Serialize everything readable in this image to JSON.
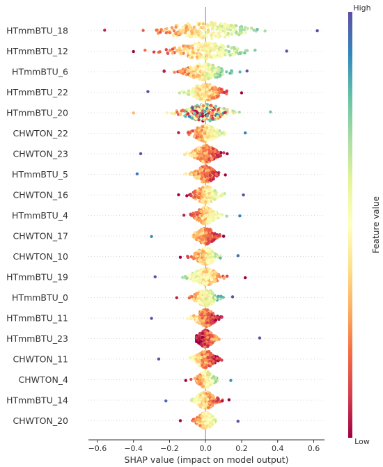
{
  "chart_data": {
    "type": "scatter",
    "subtype": "shap-beeswarm",
    "xlabel": "SHAP value (impact on model output)",
    "xlim": [
      -0.65,
      0.66
    ],
    "xticks": [
      -0.6,
      -0.4,
      -0.2,
      0.0,
      0.2,
      0.4,
      0.6
    ],
    "xtick_labels": [
      "−0.6",
      "−0.4",
      "−0.2",
      "0.0",
      "0.2",
      "0.4",
      "0.6"
    ],
    "zero_line": true,
    "colorbar": {
      "title": "Feature value",
      "high_label": "High",
      "low_label": "Low",
      "colormap": "Spectral",
      "position": "right"
    },
    "features": [
      {
        "name": "HTmmBTU_18",
        "min": -0.56,
        "max": 0.62,
        "low_side": "negative",
        "spread": 0.24
      },
      {
        "name": "HTmmBTU_12",
        "min": -0.4,
        "max": 0.45,
        "low_side": "negative",
        "spread": 0.18
      },
      {
        "name": "HTmmBTU_6",
        "min": -0.23,
        "max": 0.23,
        "low_side": "negative",
        "spread": 0.11
      },
      {
        "name": "HTmmBTU_22",
        "min": -0.32,
        "max": 0.2,
        "low_side": "positive",
        "spread": 0.09
      },
      {
        "name": "HTmmBTU_20",
        "min": -0.4,
        "max": 0.36,
        "low_side": "mixed",
        "spread": 0.13
      },
      {
        "name": "CHWTON_22",
        "min": -0.15,
        "max": 0.22,
        "low_side": "negative",
        "spread": 0.07
      },
      {
        "name": "CHWTON_23",
        "min": -0.36,
        "max": 0.12,
        "low_side": "positive",
        "spread": 0.07
      },
      {
        "name": "HTmmBTU_5",
        "min": -0.38,
        "max": 0.11,
        "low_side": "positive",
        "spread": 0.06
      },
      {
        "name": "CHWTON_16",
        "min": -0.15,
        "max": 0.21,
        "low_side": "negative",
        "spread": 0.07
      },
      {
        "name": "HTmmBTU_4",
        "min": -0.12,
        "max": 0.19,
        "low_side": "negative",
        "spread": 0.06
      },
      {
        "name": "CHWTON_17",
        "min": -0.3,
        "max": 0.1,
        "low_side": "positive",
        "spread": 0.06
      },
      {
        "name": "CHWTON_10",
        "min": -0.14,
        "max": 0.18,
        "low_side": "negative",
        "spread": 0.06
      },
      {
        "name": "HTmmBTU_19",
        "min": -0.28,
        "max": 0.22,
        "low_side": "positive",
        "spread": 0.08
      },
      {
        "name": "HTmmBTU_0",
        "min": -0.16,
        "max": 0.15,
        "low_side": "negative",
        "spread": 0.06
      },
      {
        "name": "HTmmBTU_11",
        "min": -0.3,
        "max": 0.09,
        "low_side": "positive",
        "spread": 0.06
      },
      {
        "name": "HTmmBTU_23",
        "min": -0.05,
        "max": 0.3,
        "low_side": "negative",
        "spread": 0.05
      },
      {
        "name": "CHWTON_11",
        "min": -0.26,
        "max": 0.09,
        "low_side": "positive",
        "spread": 0.06
      },
      {
        "name": "CHWTON_4",
        "min": -0.11,
        "max": 0.14,
        "low_side": "negative",
        "spread": 0.05
      },
      {
        "name": "HTmmBTU_14",
        "min": -0.22,
        "max": 0.13,
        "low_side": "positive",
        "spread": 0.06
      },
      {
        "name": "CHWTON_20",
        "min": -0.14,
        "max": 0.18,
        "low_side": "negative",
        "spread": 0.05
      }
    ]
  }
}
